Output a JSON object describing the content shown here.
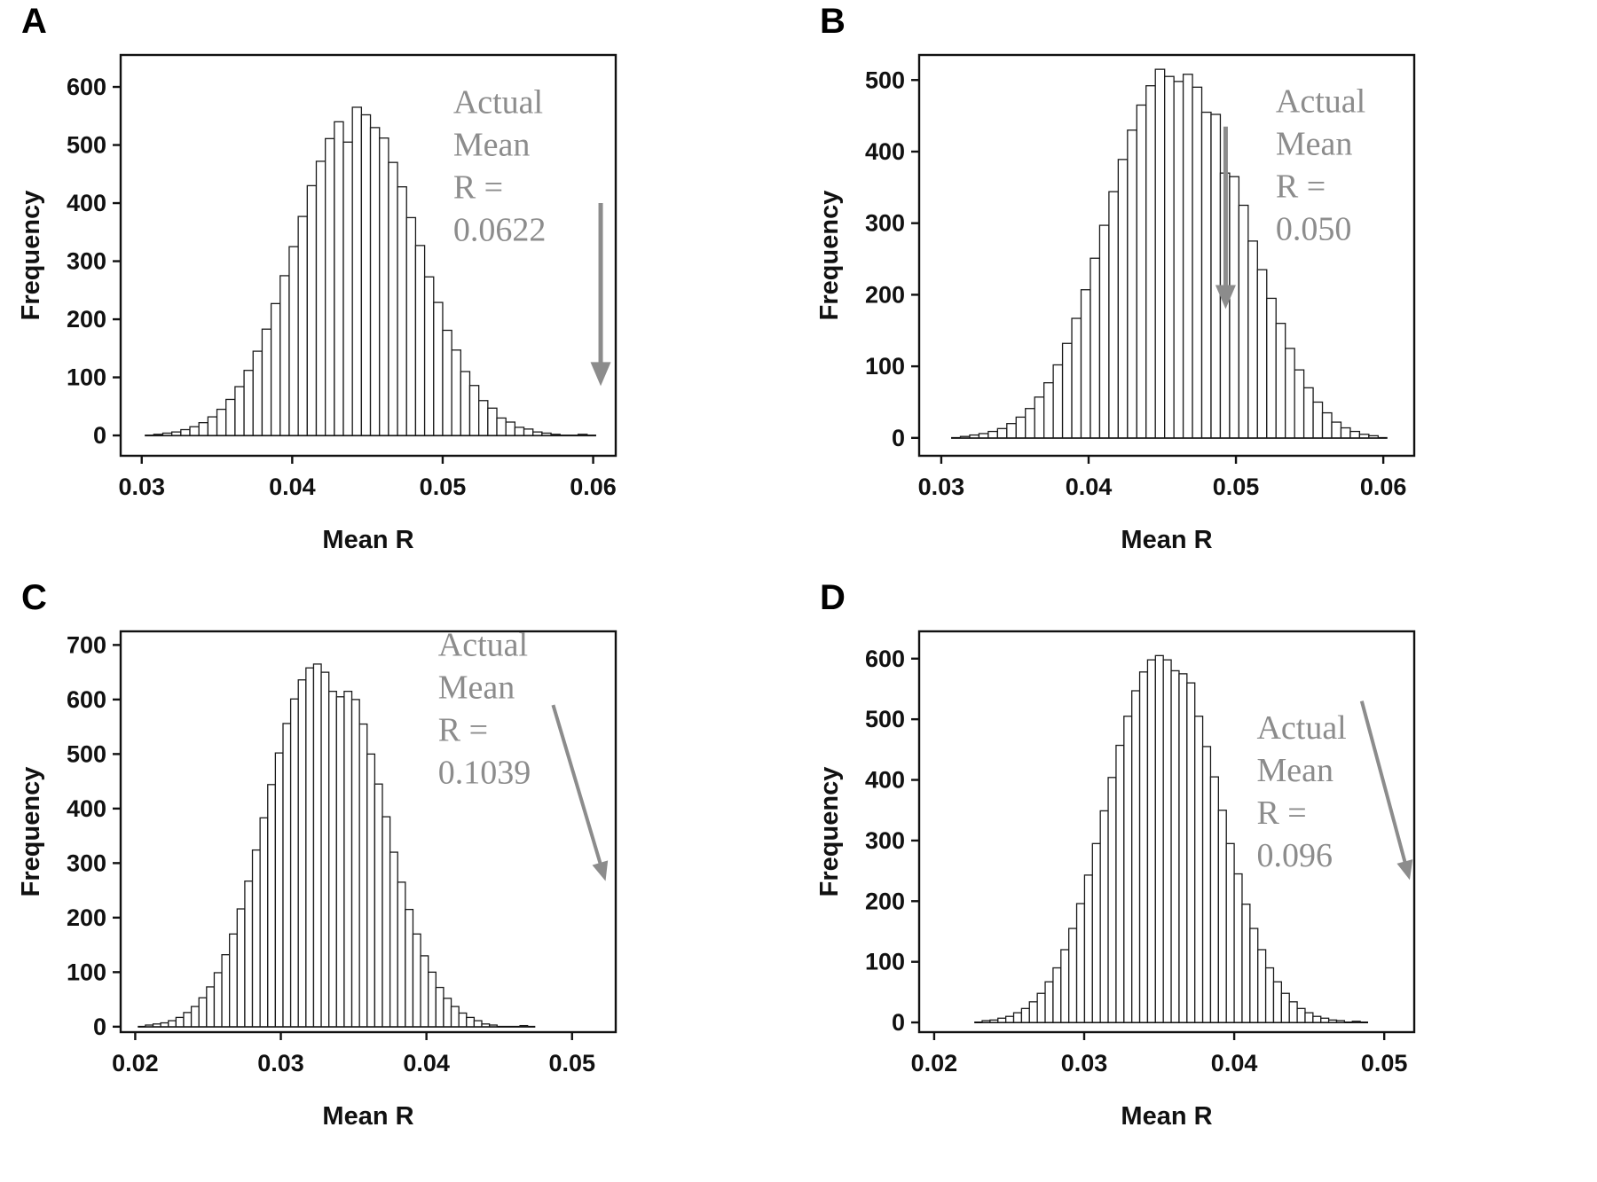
{
  "figure": {
    "background": "#ffffff",
    "description_visible_text_only": true
  },
  "colors": {
    "bar_fill": "#ffffff",
    "bar_stroke": "#1a1a1a",
    "axis": "#111111",
    "annotation_text": "#8c8c8c",
    "arrow": "#8c8c8c",
    "panel_label": "#000000"
  },
  "chart_data": [
    {
      "panel": "A",
      "type": "bar",
      "subtype": "histogram",
      "xlabel": "Mean R",
      "ylabel": "Frequency",
      "xlim": [
        0.0286,
        0.0615
      ],
      "ylim": [
        -35,
        655
      ],
      "xticks": [
        0.03,
        0.04,
        0.05,
        0.06
      ],
      "xtick_labels": [
        "0.03",
        "0.04",
        "0.05",
        "0.06"
      ],
      "yticks": [
        0,
        100,
        200,
        300,
        400,
        500,
        600
      ],
      "bin_start": 0.0308,
      "bin_width": 0.0006,
      "heights": [
        2,
        4,
        6,
        10,
        15,
        22,
        32,
        45,
        62,
        84,
        112,
        145,
        183,
        227,
        275,
        325,
        377,
        430,
        472,
        511,
        540,
        505,
        565,
        552,
        530,
        512,
        470,
        428,
        375,
        327,
        273,
        229,
        181,
        147,
        110,
        86,
        60,
        47,
        30,
        23,
        14,
        11,
        6,
        4,
        2,
        0,
        0,
        2
      ],
      "actual_mean_r": 0.0622,
      "annotation": {
        "lines": [
          "Actual",
          "Mean",
          "R =",
          "0.0622"
        ],
        "x": 0.0507,
        "y": 555
      },
      "arrow": {
        "x1": 0.0605,
        "y1": 400,
        "x2": 0.0605,
        "y2": 85,
        "width": 5
      }
    },
    {
      "panel": "B",
      "type": "bar",
      "subtype": "histogram",
      "xlabel": "Mean R",
      "ylabel": "Frequency",
      "xlim": [
        0.0285,
        0.0621
      ],
      "ylim": [
        -25,
        535
      ],
      "xticks": [
        0.03,
        0.04,
        0.05,
        0.06
      ],
      "xtick_labels": [
        "0.03",
        "0.04",
        "0.05",
        "0.06"
      ],
      "yticks": [
        0,
        100,
        200,
        300,
        400,
        500
      ],
      "bin_start": 0.0313,
      "bin_width": 0.00063,
      "heights": [
        2,
        4,
        6,
        9,
        13,
        20,
        29,
        41,
        57,
        77,
        102,
        132,
        167,
        207,
        251,
        297,
        344,
        389,
        430,
        465,
        492,
        515,
        505,
        498,
        508,
        490,
        455,
        452,
        370,
        365,
        325,
        275,
        235,
        195,
        160,
        125,
        95,
        70,
        50,
        35,
        22,
        14,
        9,
        5,
        3
      ],
      "actual_mean_r": 0.05,
      "annotation": {
        "lines": [
          "Actual",
          "Mean",
          "R =",
          "0.050"
        ],
        "x": 0.0527,
        "y": 455
      },
      "arrow": {
        "x1": 0.0493,
        "y1": 435,
        "x2": 0.0493,
        "y2": 180,
        "width": 5
      }
    },
    {
      "panel": "C",
      "type": "bar",
      "subtype": "histogram",
      "xlabel": "Mean R",
      "ylabel": "Frequency",
      "xlim": [
        0.019,
        0.053
      ],
      "ylim": [
        -10,
        725
      ],
      "xticks": [
        0.02,
        0.03,
        0.04,
        0.05
      ],
      "xtick_labels": [
        "0.02",
        "0.03",
        "0.04",
        "0.05"
      ],
      "yticks": [
        0,
        100,
        200,
        300,
        400,
        500,
        600,
        700
      ],
      "bin_start": 0.0207,
      "bin_width": 0.000525,
      "heights": [
        3,
        5,
        7,
        11,
        17,
        26,
        37,
        53,
        73,
        99,
        132,
        170,
        216,
        267,
        324,
        383,
        444,
        502,
        556,
        601,
        636,
        658,
        665,
        650,
        615,
        605,
        615,
        600,
        555,
        500,
        445,
        385,
        320,
        265,
        215,
        170,
        130,
        100,
        72,
        52,
        37,
        25,
        17,
        11,
        5,
        3,
        0,
        0,
        0,
        2
      ],
      "actual_mean_r": 0.1039,
      "annotation": {
        "lines": [
          "Actual",
          "Mean",
          "R =",
          "0.1039"
        ],
        "x": 0.0408,
        "y": 680
      },
      "arrow": {
        "x1": 0.0487,
        "y1": 590,
        "x2": 0.0523,
        "y2": 267,
        "width": 4
      },
      "note": "arrow points off-scale to the right"
    },
    {
      "panel": "D",
      "type": "bar",
      "subtype": "histogram",
      "xlabel": "Mean R",
      "ylabel": "Frequency",
      "xlim": [
        0.019,
        0.052
      ],
      "ylim": [
        -16,
        645
      ],
      "xticks": [
        0.02,
        0.03,
        0.04,
        0.05
      ],
      "xtick_labels": [
        "0.02",
        "0.03",
        "0.04",
        "0.05"
      ],
      "yticks": [
        0,
        100,
        200,
        300,
        400,
        500,
        600
      ],
      "bin_start": 0.0232,
      "bin_width": 0.000525,
      "heights": [
        3,
        4,
        7,
        10,
        16,
        23,
        34,
        48,
        67,
        90,
        120,
        155,
        196,
        243,
        295,
        349,
        404,
        457,
        505,
        547,
        578,
        598,
        605,
        598,
        580,
        575,
        560,
        505,
        455,
        405,
        350,
        295,
        245,
        195,
        155,
        120,
        90,
        67,
        48,
        34,
        23,
        16,
        10,
        7,
        4,
        3,
        0,
        2
      ],
      "actual_mean_r": 0.096,
      "annotation": {
        "lines": [
          "Actual",
          "Mean",
          "R =",
          "0.096"
        ],
        "x": 0.0415,
        "y": 468
      },
      "arrow": {
        "x1": 0.0485,
        "y1": 530,
        "x2": 0.0517,
        "y2": 235,
        "width": 4
      },
      "note": "arrow points off-scale to the right"
    }
  ]
}
